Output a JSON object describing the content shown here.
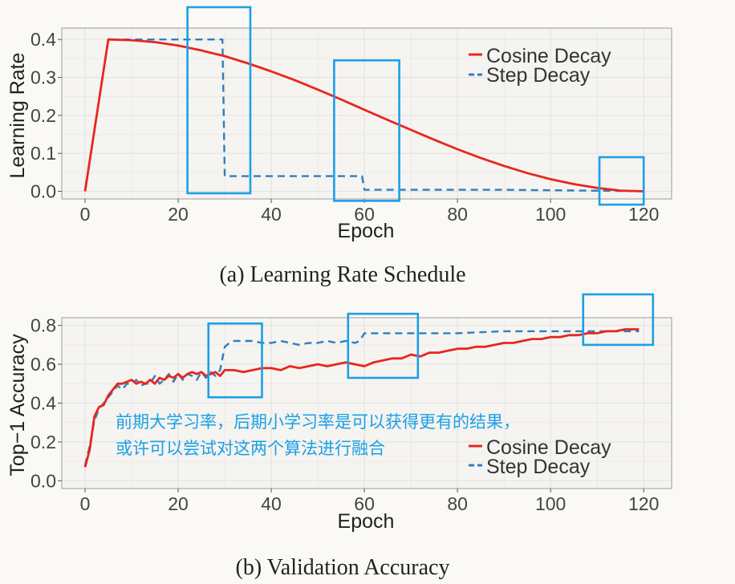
{
  "colors": {
    "cosine": "#e8261f",
    "step": "#2f7ec0",
    "highlight": "#1aa0e6",
    "panel_bg": "#f5f4f0",
    "grid": "#e4e3df"
  },
  "chart_data": [
    {
      "type": "line",
      "caption": "(a) Learning Rate Schedule",
      "xlabel": "Epoch",
      "ylabel": "Learning Rate",
      "xlim": [
        -5,
        126
      ],
      "ylim": [
        -0.02,
        0.43
      ],
      "xticks": [
        0,
        20,
        40,
        60,
        80,
        100,
        120
      ],
      "yticks": [
        0.0,
        0.1,
        0.2,
        0.3,
        0.4
      ],
      "ytick_labels": [
        "0.0",
        "0.1",
        "0.2",
        "0.3",
        "0.4"
      ],
      "grid": true,
      "legend_position": "top-right",
      "series": [
        {
          "name": "Cosine Decay",
          "style": "solid",
          "x": [
            0,
            5,
            10,
            15,
            20,
            25,
            30,
            35,
            40,
            45,
            50,
            55,
            60,
            65,
            70,
            75,
            80,
            85,
            90,
            95,
            100,
            105,
            110,
            115,
            120
          ],
          "y": [
            0.0,
            0.4,
            0.398,
            0.393,
            0.384,
            0.371,
            0.356,
            0.337,
            0.316,
            0.293,
            0.268,
            0.242,
            0.215,
            0.188,
            0.162,
            0.136,
            0.111,
            0.088,
            0.067,
            0.048,
            0.032,
            0.019,
            0.009,
            0.002,
            0.0
          ]
        },
        {
          "name": "Step Decay",
          "style": "dashed",
          "x": [
            0,
            5,
            29.5,
            30,
            59.5,
            60,
            90,
            120
          ],
          "y": [
            0.0,
            0.4,
            0.4,
            0.04,
            0.04,
            0.004,
            0.004,
            0.0004
          ]
        }
      ],
      "highlight_boxes": [
        {
          "x": [
            22,
            35.5
          ],
          "y": [
            -0.005,
            0.485
          ]
        },
        {
          "x": [
            53.5,
            67.5
          ],
          "y": [
            -0.025,
            0.345
          ]
        },
        {
          "x": [
            110.5,
            120
          ],
          "y": [
            -0.035,
            0.09
          ]
        }
      ]
    },
    {
      "type": "line",
      "caption": "(b) Validation Accuracy",
      "xlabel": "Epoch",
      "ylabel": "Top−1 Accuracy",
      "xlim": [
        -5,
        126
      ],
      "ylim": [
        -0.04,
        0.84
      ],
      "xticks": [
        0,
        20,
        40,
        60,
        80,
        100,
        120
      ],
      "yticks": [
        0.0,
        0.2,
        0.4,
        0.6,
        0.8
      ],
      "ytick_labels": [
        "0.0",
        "0.2",
        "0.4",
        "0.6",
        "0.8"
      ],
      "grid": true,
      "legend_position": "bottom-right",
      "annotation_lines": [
        "前期大学习率，后期小学习率是可以获得更有的结果，",
        "或许可以尝试对这两个算法进行融合"
      ],
      "series": [
        {
          "name": "Cosine Decay",
          "style": "solid",
          "x": [
            0,
            1,
            2,
            3,
            4,
            5,
            6,
            7,
            8,
            9,
            10,
            11,
            12,
            13,
            14,
            15,
            16,
            17,
            18,
            19,
            20,
            21,
            22,
            23,
            24,
            25,
            26,
            27,
            28,
            29,
            30,
            32,
            34,
            36,
            38,
            40,
            42,
            44,
            46,
            48,
            50,
            52,
            54,
            56,
            58,
            60,
            62,
            64,
            66,
            68,
            70,
            72,
            74,
            76,
            78,
            80,
            82,
            84,
            86,
            88,
            90,
            92,
            94,
            96,
            98,
            100,
            102,
            104,
            106,
            108,
            110,
            112,
            114,
            116,
            118,
            119
          ],
          "y": [
            0.07,
            0.16,
            0.33,
            0.38,
            0.39,
            0.44,
            0.47,
            0.5,
            0.5,
            0.51,
            0.52,
            0.5,
            0.51,
            0.5,
            0.52,
            0.5,
            0.53,
            0.52,
            0.54,
            0.53,
            0.55,
            0.53,
            0.55,
            0.56,
            0.55,
            0.56,
            0.54,
            0.55,
            0.56,
            0.54,
            0.57,
            0.57,
            0.56,
            0.57,
            0.58,
            0.58,
            0.57,
            0.59,
            0.58,
            0.59,
            0.6,
            0.59,
            0.6,
            0.61,
            0.6,
            0.59,
            0.61,
            0.62,
            0.63,
            0.63,
            0.65,
            0.64,
            0.66,
            0.66,
            0.67,
            0.68,
            0.68,
            0.69,
            0.69,
            0.7,
            0.71,
            0.71,
            0.72,
            0.73,
            0.73,
            0.74,
            0.74,
            0.75,
            0.75,
            0.76,
            0.76,
            0.77,
            0.77,
            0.78,
            0.78,
            0.78
          ]
        },
        {
          "name": "Step Decay",
          "style": "dashed",
          "x": [
            0,
            1,
            2,
            3,
            4,
            5,
            6,
            7,
            8,
            9,
            10,
            11,
            12,
            13,
            14,
            15,
            16,
            17,
            18,
            19,
            20,
            21,
            22,
            23,
            24,
            25,
            26,
            27,
            28,
            29,
            30,
            31,
            32,
            34,
            36,
            38,
            40,
            42,
            44,
            46,
            48,
            50,
            52,
            54,
            56,
            58,
            59,
            60,
            62,
            64,
            70,
            80,
            90,
            100,
            110,
            119
          ],
          "y": [
            0.08,
            0.18,
            0.31,
            0.37,
            0.4,
            0.43,
            0.46,
            0.49,
            0.47,
            0.5,
            0.5,
            0.52,
            0.49,
            0.5,
            0.5,
            0.54,
            0.5,
            0.52,
            0.55,
            0.51,
            0.55,
            0.52,
            0.55,
            0.54,
            0.52,
            0.56,
            0.53,
            0.56,
            0.54,
            0.57,
            0.69,
            0.71,
            0.72,
            0.72,
            0.72,
            0.71,
            0.71,
            0.72,
            0.71,
            0.7,
            0.71,
            0.71,
            0.72,
            0.71,
            0.72,
            0.71,
            0.72,
            0.76,
            0.76,
            0.76,
            0.76,
            0.76,
            0.77,
            0.77,
            0.77,
            0.77
          ]
        }
      ],
      "highlight_boxes": [
        {
          "x": [
            26.5,
            38
          ],
          "y": [
            0.43,
            0.81
          ]
        },
        {
          "x": [
            56.5,
            71.5
          ],
          "y": [
            0.53,
            0.86
          ]
        },
        {
          "x": [
            107,
            122
          ],
          "y": [
            0.7,
            0.96
          ]
        }
      ]
    }
  ]
}
